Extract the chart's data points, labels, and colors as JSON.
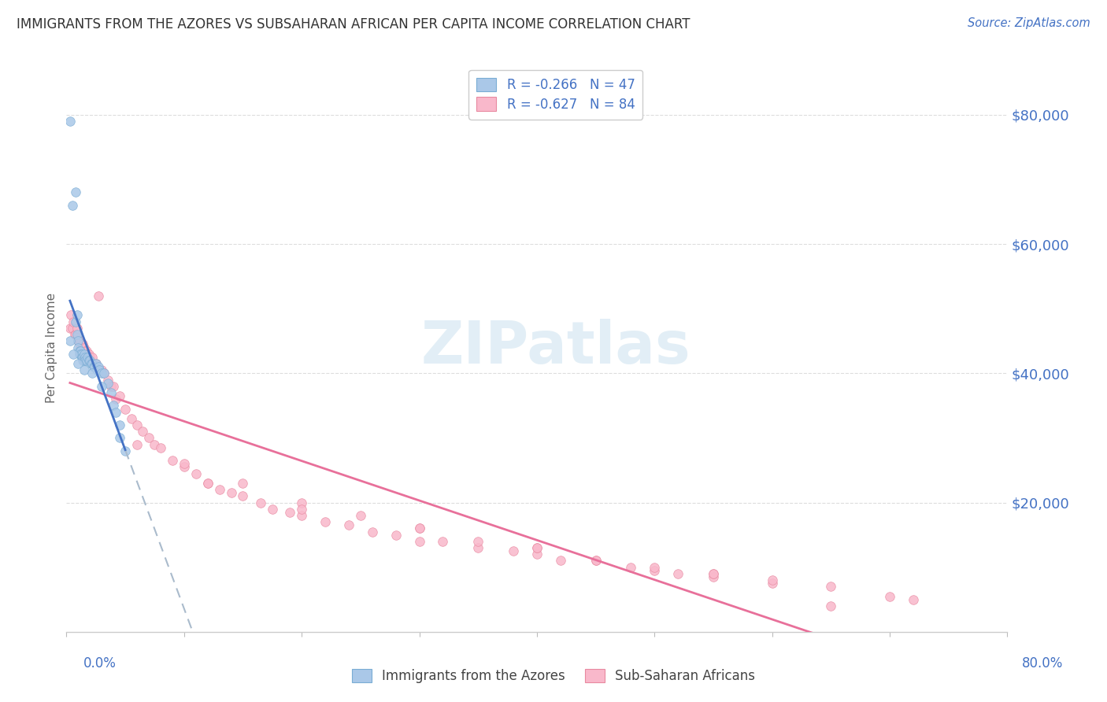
{
  "title": "IMMIGRANTS FROM THE AZORES VS SUBSAHARAN AFRICAN PER CAPITA INCOME CORRELATION CHART",
  "source": "Source: ZipAtlas.com",
  "ylabel": "Per Capita Income",
  "y_ticks": [
    20000,
    40000,
    60000,
    80000
  ],
  "y_tick_labels": [
    "$20,000",
    "$40,000",
    "$60,000",
    "$80,000"
  ],
  "xlim": [
    0.0,
    0.8
  ],
  "ylim": [
    0,
    88000
  ],
  "text_blue": "#4472c4",
  "watermark": "ZIPatlas",
  "azores_scatter_color": "#aac8e8",
  "azores_edge_color": "#7aadd4",
  "subsaharan_scatter_color": "#f9b8cb",
  "subsaharan_edge_color": "#e889a0",
  "azores_line_color": "#4472c4",
  "subsaharan_line_color": "#e8709a",
  "dashed_line_color": "#aabbcc",
  "azores_x": [
    0.003,
    0.005,
    0.008,
    0.008,
    0.009,
    0.009,
    0.01,
    0.01,
    0.011,
    0.011,
    0.012,
    0.012,
    0.013,
    0.013,
    0.014,
    0.014,
    0.015,
    0.015,
    0.016,
    0.016,
    0.017,
    0.018,
    0.019,
    0.02,
    0.021,
    0.022,
    0.023,
    0.024,
    0.025,
    0.026,
    0.027,
    0.028,
    0.03,
    0.032,
    0.035,
    0.038,
    0.04,
    0.042,
    0.045,
    0.05,
    0.003,
    0.006,
    0.01,
    0.015,
    0.022,
    0.03,
    0.045
  ],
  "azores_y": [
    79000,
    66000,
    68000,
    48000,
    49000,
    46000,
    45000,
    44000,
    43500,
    43000,
    43500,
    43000,
    43000,
    42500,
    42500,
    42000,
    43000,
    42000,
    42500,
    42000,
    42000,
    42500,
    42000,
    42000,
    41500,
    41500,
    41000,
    41000,
    41500,
    40500,
    41000,
    40500,
    40000,
    40000,
    38500,
    37000,
    35000,
    34000,
    32000,
    28000,
    45000,
    43000,
    41500,
    40500,
    40000,
    38000,
    30000
  ],
  "subsaharan_x": [
    0.003,
    0.004,
    0.005,
    0.006,
    0.007,
    0.008,
    0.009,
    0.01,
    0.011,
    0.012,
    0.013,
    0.014,
    0.015,
    0.016,
    0.017,
    0.018,
    0.019,
    0.02,
    0.022,
    0.025,
    0.027,
    0.03,
    0.032,
    0.035,
    0.038,
    0.04,
    0.042,
    0.045,
    0.05,
    0.055,
    0.06,
    0.065,
    0.07,
    0.075,
    0.08,
    0.09,
    0.1,
    0.11,
    0.12,
    0.13,
    0.14,
    0.15,
    0.165,
    0.175,
    0.19,
    0.2,
    0.22,
    0.24,
    0.26,
    0.28,
    0.3,
    0.32,
    0.35,
    0.38,
    0.4,
    0.42,
    0.45,
    0.48,
    0.5,
    0.52,
    0.55,
    0.6,
    0.65,
    0.7,
    0.72,
    0.06,
    0.1,
    0.15,
    0.2,
    0.25,
    0.3,
    0.35,
    0.4,
    0.45,
    0.5,
    0.55,
    0.6,
    0.12,
    0.2,
    0.3,
    0.4,
    0.55,
    0.65
  ],
  "subsaharan_y": [
    47000,
    49000,
    47000,
    48000,
    46000,
    46000,
    47000,
    45000,
    44500,
    45000,
    44000,
    44500,
    44000,
    43500,
    43500,
    43000,
    43000,
    42500,
    42500,
    41500,
    52000,
    40500,
    40000,
    39000,
    38000,
    38000,
    36000,
    36500,
    34500,
    33000,
    32000,
    31000,
    30000,
    29000,
    28500,
    26500,
    25500,
    24500,
    23000,
    22000,
    21500,
    21000,
    20000,
    19000,
    18500,
    18000,
    17000,
    16500,
    15500,
    15000,
    14000,
    14000,
    13000,
    12500,
    12000,
    11000,
    11000,
    10000,
    9500,
    9000,
    8500,
    7500,
    7000,
    5500,
    5000,
    29000,
    26000,
    23000,
    20000,
    18000,
    16000,
    14000,
    13000,
    11000,
    10000,
    9000,
    8000,
    23000,
    19000,
    16000,
    13000,
    9000,
    4000
  ]
}
